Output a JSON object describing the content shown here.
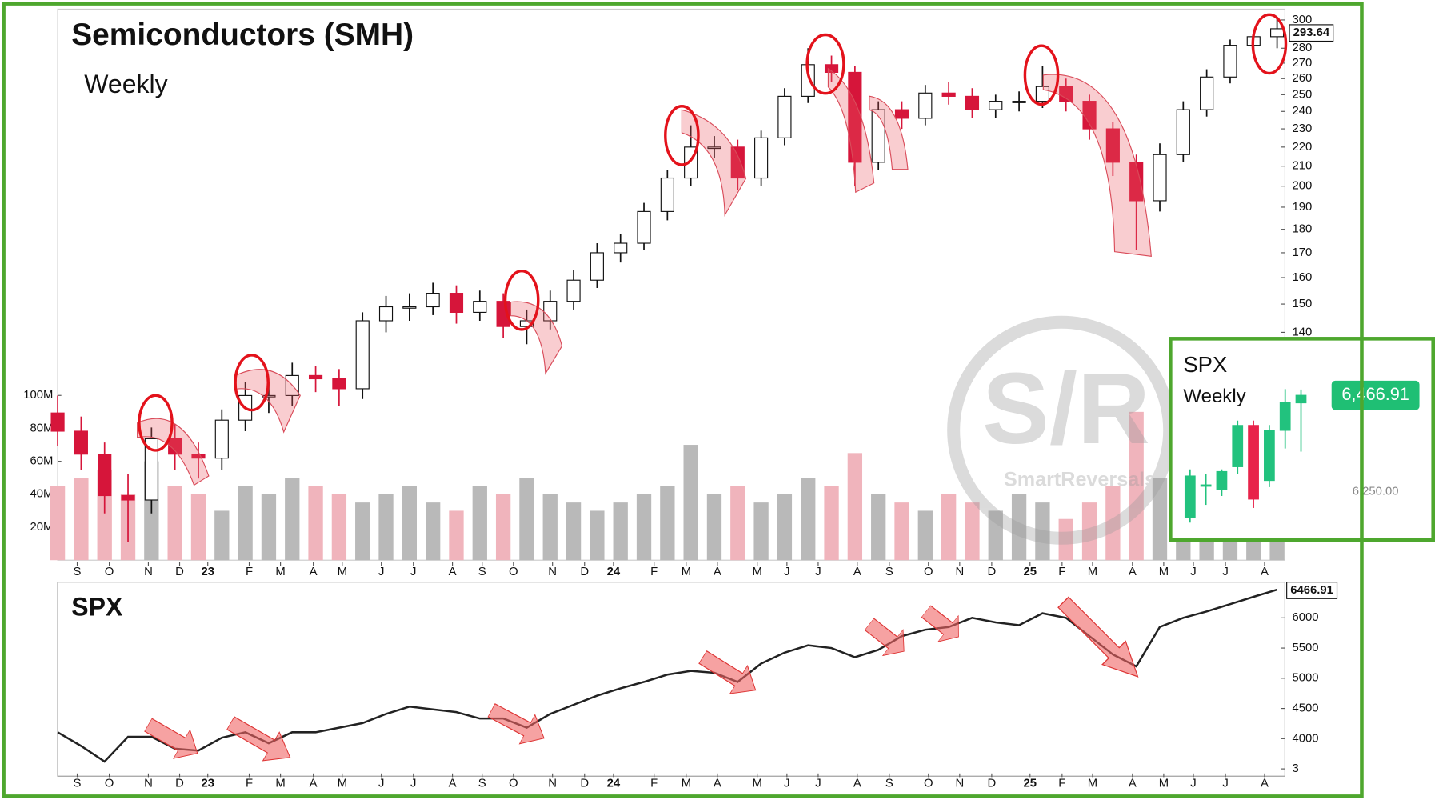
{
  "watermark": {
    "mark": "S/R",
    "name": "SmartReversals"
  },
  "chart_data": [
    {
      "type": "candlestick",
      "title": "Semiconductors (SMH)",
      "subtitle": "Weekly",
      "x": [
        0,
        3,
        6,
        9,
        12,
        15,
        18,
        21,
        24,
        27,
        30,
        33,
        36,
        39,
        42,
        45,
        48,
        51,
        54,
        57,
        60,
        63,
        66,
        69,
        72,
        75,
        78,
        81,
        84,
        87,
        90,
        93,
        96,
        99,
        102,
        105,
        108,
        111,
        114,
        117,
        120,
        123,
        126,
        129,
        132,
        135,
        138,
        141,
        144,
        147,
        150,
        153,
        156
      ],
      "open": [
        115,
        110,
        104,
        94,
        93,
        108,
        104,
        103,
        113,
        120,
        120,
        126,
        125,
        122,
        144,
        149,
        149,
        154,
        147,
        151,
        142,
        144,
        151,
        159,
        170,
        174,
        188,
        204,
        220,
        220,
        204,
        225,
        249,
        269,
        264,
        212,
        241,
        236,
        251,
        249,
        241,
        246,
        246,
        255,
        246,
        230,
        212,
        193,
        216,
        241,
        261,
        282,
        288
      ],
      "high": [
        120,
        114,
        107,
        99,
        111,
        112,
        107,
        116,
        124,
        124,
        130,
        129,
        128,
        147,
        153,
        154,
        158,
        157,
        155,
        154,
        148,
        155,
        163,
        174,
        178,
        192,
        208,
        232,
        226,
        224,
        229,
        254,
        280,
        275,
        268,
        246,
        246,
        256,
        258,
        254,
        250,
        252,
        268,
        260,
        250,
        234,
        216,
        222,
        246,
        266,
        286,
        292,
        302
      ],
      "low": [
        106,
        100,
        90,
        84,
        90,
        100,
        98,
        100,
        110,
        115,
        117,
        121,
        117,
        119,
        140,
        144,
        146,
        143,
        144,
        138,
        136,
        141,
        148,
        156,
        166,
        171,
        184,
        200,
        214,
        198,
        200,
        221,
        245,
        258,
        200,
        208,
        230,
        232,
        244,
        236,
        236,
        240,
        242,
        240,
        224,
        205,
        171,
        188,
        212,
        237,
        257,
        278,
        280
      ],
      "close": [
        110,
        104,
        94,
        93,
        108,
        104,
        103,
        113,
        120,
        120,
        126,
        125,
        122,
        144,
        149,
        149,
        154,
        147,
        151,
        142,
        144,
        151,
        159,
        170,
        174,
        188,
        204,
        220,
        220,
        204,
        225,
        249,
        269,
        264,
        212,
        241,
        236,
        251,
        249,
        241,
        246,
        246,
        255,
        246,
        230,
        212,
        193,
        216,
        241,
        261,
        282,
        288,
        293.64
      ],
      "up_color": "#ffffff",
      "down_color": "#d6153a",
      "outline_color": "#111111",
      "log_scale": true,
      "ylim": [
        80.3,
        308
      ],
      "yticks": [
        140,
        150,
        160,
        170,
        180,
        190,
        200,
        210,
        220,
        230,
        240,
        250,
        260,
        270,
        280,
        290,
        300
      ],
      "xlim": [
        0,
        157
      ],
      "xticks": [
        {
          "value": 2.5,
          "label": "S"
        },
        {
          "value": 6.6,
          "label": "O"
        },
        {
          "value": 11.6,
          "label": "N"
        },
        {
          "value": 15.6,
          "label": "D"
        },
        {
          "value": 19.2,
          "label": "23"
        },
        {
          "value": 24.5,
          "label": "F"
        },
        {
          "value": 28.5,
          "label": "M"
        },
        {
          "value": 32.7,
          "label": "A"
        },
        {
          "value": 36.4,
          "label": "M"
        },
        {
          "value": 41.4,
          "label": "J"
        },
        {
          "value": 45.5,
          "label": "J"
        },
        {
          "value": 50.5,
          "label": "A"
        },
        {
          "value": 54.3,
          "label": "S"
        },
        {
          "value": 58.3,
          "label": "O"
        },
        {
          "value": 63.3,
          "label": "N"
        },
        {
          "value": 67.4,
          "label": "D"
        },
        {
          "value": 71.1,
          "label": "24"
        },
        {
          "value": 76.3,
          "label": "F"
        },
        {
          "value": 80.4,
          "label": "M"
        },
        {
          "value": 84.4,
          "label": "A"
        },
        {
          "value": 89.5,
          "label": "M"
        },
        {
          "value": 93.3,
          "label": "J"
        },
        {
          "value": 97.3,
          "label": "J"
        },
        {
          "value": 102.3,
          "label": "A"
        },
        {
          "value": 106.4,
          "label": "S"
        },
        {
          "value": 111.4,
          "label": "O"
        },
        {
          "value": 115.4,
          "label": "N"
        },
        {
          "value": 119.5,
          "label": "D"
        },
        {
          "value": 124.4,
          "label": "25"
        },
        {
          "value": 128.5,
          "label": "F"
        },
        {
          "value": 132.4,
          "label": "M"
        },
        {
          "value": 137.5,
          "label": "A"
        },
        {
          "value": 141.5,
          "label": "M"
        },
        {
          "value": 145.3,
          "label": "J"
        },
        {
          "value": 149.4,
          "label": "J"
        },
        {
          "value": 154.4,
          "label": "A"
        }
      ]
    },
    {
      "type": "bar",
      "x": [
        0,
        3,
        6,
        9,
        12,
        15,
        18,
        21,
        24,
        27,
        30,
        33,
        36,
        39,
        42,
        45,
        48,
        51,
        54,
        57,
        60,
        63,
        66,
        69,
        72,
        75,
        78,
        81,
        84,
        87,
        90,
        93,
        96,
        99,
        102,
        105,
        108,
        111,
        114,
        117,
        120,
        123,
        126,
        129,
        132,
        135,
        138,
        141,
        144,
        147,
        150,
        153,
        156
      ],
      "values": [
        45,
        50,
        55,
        40,
        60,
        45,
        40,
        30,
        45,
        40,
        50,
        45,
        40,
        35,
        40,
        45,
        35,
        30,
        45,
        40,
        50,
        40,
        35,
        30,
        35,
        40,
        45,
        70,
        40,
        45,
        35,
        40,
        50,
        45,
        65,
        40,
        35,
        30,
        40,
        35,
        30,
        40,
        35,
        25,
        35,
        45,
        90,
        50,
        40,
        30,
        30,
        35,
        25
      ],
      "up_color": "#b9b9b9",
      "down_color": "#f0b4bc",
      "ylim": [
        0,
        334.4
      ],
      "yticks": [
        {
          "value": 20,
          "label": "20M"
        },
        {
          "value": 40,
          "label": "40M"
        },
        {
          "value": 60,
          "label": "60M"
        },
        {
          "value": 80,
          "label": "80M"
        },
        {
          "value": 100,
          "label": "100M"
        }
      ],
      "xlim": [
        0,
        157
      ]
    },
    {
      "type": "line",
      "title": "SPX",
      "x": [
        0,
        3,
        6,
        9,
        12,
        15,
        18,
        21,
        24,
        27,
        30,
        33,
        36,
        39,
        42,
        45,
        48,
        51,
        54,
        57,
        60,
        63,
        66,
        69,
        72,
        75,
        78,
        81,
        84,
        87,
        90,
        93,
        96,
        99,
        102,
        105,
        108,
        111,
        114,
        117,
        120,
        123,
        126,
        129,
        132,
        135,
        138,
        141,
        144,
        147,
        150,
        153,
        156
      ],
      "values": [
        4106,
        3879,
        3621,
        4030,
        4030,
        3833,
        3803,
        4015,
        4106,
        3924,
        4106,
        4106,
        4182,
        4258,
        4409,
        4530,
        4485,
        4439,
        4333,
        4333,
        4182,
        4409,
        4561,
        4712,
        4833,
        4939,
        5061,
        5121,
        5091,
        4939,
        5242,
        5424,
        5545,
        5500,
        5348,
        5470,
        5697,
        5803,
        5848,
        6000,
        5924,
        5879,
        6076,
        6000,
        5697,
        5394,
        5197,
        5848,
        6000,
        6106,
        6227,
        6348,
        6466.91
      ],
      "color": "#222222",
      "ylim": [
        3379,
        6591
      ],
      "yticks": [
        {
          "value": 3500,
          "label": "3"
        },
        4000,
        4500,
        5000,
        5500,
        6000
      ],
      "xlim": [
        0,
        157
      ],
      "xticks": [
        {
          "value": 2.5,
          "label": "S"
        },
        {
          "value": 6.6,
          "label": "O"
        },
        {
          "value": 11.6,
          "label": "N"
        },
        {
          "value": 15.6,
          "label": "D"
        },
        {
          "value": 19.2,
          "label": "23"
        },
        {
          "value": 24.5,
          "label": "F"
        },
        {
          "value": 28.5,
          "label": "M"
        },
        {
          "value": 32.7,
          "label": "A"
        },
        {
          "value": 36.4,
          "label": "M"
        },
        {
          "value": 41.4,
          "label": "J"
        },
        {
          "value": 45.5,
          "label": "J"
        },
        {
          "value": 50.5,
          "label": "A"
        },
        {
          "value": 54.3,
          "label": "S"
        },
        {
          "value": 58.3,
          "label": "O"
        },
        {
          "value": 63.3,
          "label": "N"
        },
        {
          "value": 67.4,
          "label": "D"
        },
        {
          "value": 71.1,
          "label": "24"
        },
        {
          "value": 76.3,
          "label": "F"
        },
        {
          "value": 80.4,
          "label": "M"
        },
        {
          "value": 84.4,
          "label": "A"
        },
        {
          "value": 89.5,
          "label": "M"
        },
        {
          "value": 93.3,
          "label": "J"
        },
        {
          "value": 97.3,
          "label": "J"
        },
        {
          "value": 102.3,
          "label": "A"
        },
        {
          "value": 106.4,
          "label": "S"
        },
        {
          "value": 111.4,
          "label": "O"
        },
        {
          "value": 115.4,
          "label": "N"
        },
        {
          "value": 119.5,
          "label": "D"
        },
        {
          "value": 124.4,
          "label": "25"
        },
        {
          "value": 128.5,
          "label": "F"
        },
        {
          "value": 132.4,
          "label": "M"
        },
        {
          "value": 137.5,
          "label": "A"
        },
        {
          "value": 141.5,
          "label": "M"
        },
        {
          "value": 145.3,
          "label": "J"
        },
        {
          "value": 149.4,
          "label": "J"
        },
        {
          "value": 154.4,
          "label": "A"
        }
      ]
    },
    {
      "type": "candlestick",
      "title": "SPX",
      "subtitle": "Weekly",
      "x": [
        0,
        1,
        2,
        3,
        4,
        5,
        6,
        7
      ],
      "open": [
        6192,
        6262,
        6254,
        6306,
        6399,
        6275,
        6388,
        6450
      ],
      "high": [
        6300,
        6290,
        6300,
        6410,
        6410,
        6400,
        6481,
        6480
      ],
      "low": [
        6180,
        6220,
        6240,
        6290,
        6213,
        6260,
        6347,
        6340
      ],
      "close": [
        6285,
        6265,
        6295,
        6399,
        6233,
        6388,
        6450,
        6466.91
      ],
      "up_color": "#22c27e",
      "down_color": "#e8234a",
      "label_box_color": "#1fbf74",
      "ylim": [
        6151,
        6574
      ],
      "yticks": [
        {
          "value": 6250,
          "label": "6,250.00"
        },
        {
          "value": 6466.91,
          "label": "6,466.91"
        }
      ],
      "xlim": [
        -0.6,
        7.6
      ]
    }
  ]
}
